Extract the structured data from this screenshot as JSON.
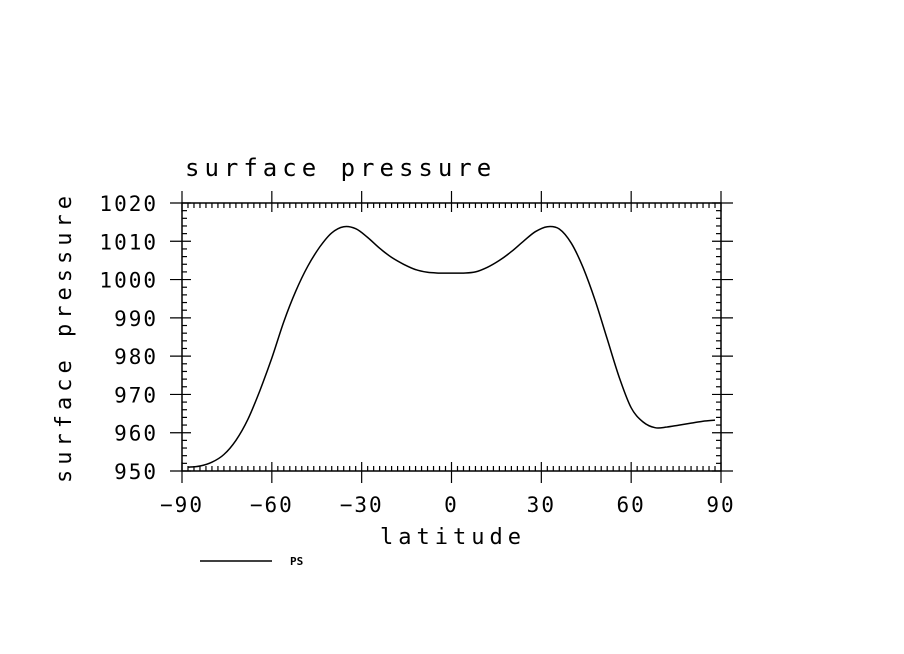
{
  "chart_data": {
    "type": "line",
    "title": "surface pressure",
    "xlabel": "latitude",
    "ylabel": "surface pressure",
    "xlim": [
      -90,
      90
    ],
    "ylim": [
      950,
      1020
    ],
    "x_ticks": [
      -90,
      -60,
      -30,
      0,
      30,
      60,
      90
    ],
    "x_tick_labels": [
      "−90",
      "−60",
      "−30",
      "0",
      "30",
      "60",
      "90"
    ],
    "x_minor_step": 2,
    "y_ticks": [
      950,
      960,
      970,
      980,
      990,
      1000,
      1010,
      1020
    ],
    "y_tick_labels": [
      "950",
      "960",
      "970",
      "980",
      "990",
      "1000",
      "1010",
      "1020"
    ],
    "y_minor_step": 2,
    "grid": false,
    "legend_position": "bottom-left",
    "series": [
      {
        "name": "PS",
        "color": "#000000",
        "x": [
          -88,
          -84,
          -80,
          -76,
          -72,
          -68,
          -64,
          -60,
          -56,
          -52,
          -48,
          -44,
          -40,
          -36,
          -32,
          -28,
          -24,
          -20,
          -16,
          -12,
          -8,
          -4,
          0,
          4,
          8,
          12,
          16,
          20,
          24,
          28,
          32,
          36,
          40,
          44,
          48,
          52,
          56,
          60,
          64,
          68,
          72,
          76,
          80,
          84,
          88
        ],
        "values": [
          951,
          951.3,
          952.3,
          954.3,
          958,
          963.5,
          971,
          979.5,
          989,
          997,
          1003.5,
          1008.5,
          1012.2,
          1013.8,
          1013.3,
          1011,
          1008.2,
          1005.8,
          1004,
          1002.6,
          1001.9,
          1001.7,
          1001.7,
          1001.7,
          1002,
          1003.2,
          1005,
          1007.3,
          1010,
          1012.5,
          1013.8,
          1013.2,
          1009.5,
          1003,
          994.5,
          984.5,
          974.5,
          966.5,
          962.8,
          961.3,
          961.5,
          962,
          962.5,
          963,
          963.3
        ]
      }
    ]
  }
}
